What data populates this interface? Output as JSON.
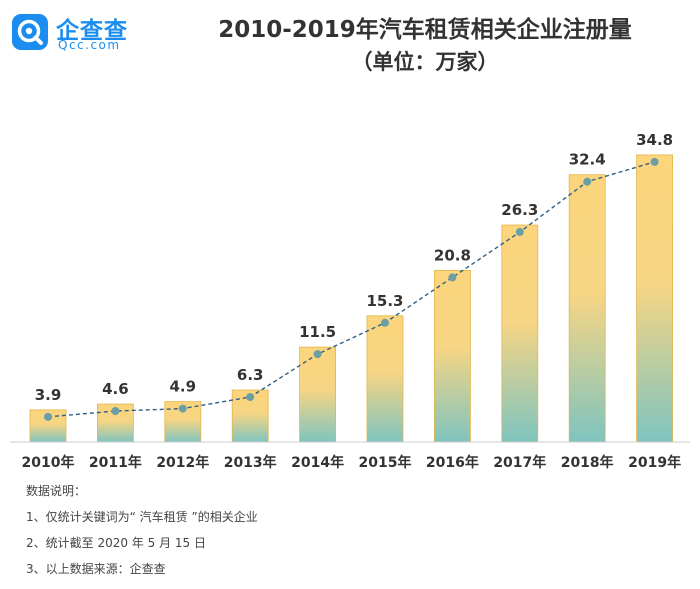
{
  "brand": {
    "name_cn": "企查查",
    "name_en": "Qcc.com",
    "accent": "#1b8df0"
  },
  "title": "2010-2019年汽车租赁相关企业注册量",
  "subtitle": "（单位：万家）",
  "chart_data": {
    "type": "bar",
    "categories": [
      "2010年",
      "2011年",
      "2012年",
      "2013年",
      "2014年",
      "2015年",
      "2016年",
      "2017年",
      "2018年",
      "2019年"
    ],
    "values": [
      3.9,
      4.6,
      4.9,
      6.3,
      11.5,
      15.3,
      20.8,
      26.3,
      32.4,
      34.8
    ],
    "data_labels": [
      "3.9",
      "4.6",
      "4.9",
      "6.3",
      "11.5",
      "15.3",
      "20.8",
      "26.3",
      "32.4",
      "34.8"
    ],
    "title": "2010-2019年汽车租赁相关企业注册量",
    "subtitle": "（单位：万家）",
    "ylim": [
      0,
      40
    ],
    "grid": false,
    "legend": "none",
    "trend_line": true,
    "colors": {
      "bar_top": "#fcd57c",
      "bar_bottom": "#7fc4bf",
      "bar_border": "#e3b64c",
      "trend": "#2f5f86",
      "marker": "#6b9fa6"
    }
  },
  "notes": {
    "heading": "数据说明：",
    "items": [
      "1、仅统计关键词为“ 汽车租赁 ”的相关企业",
      "2、统计截至 2020 年 5 月 15 日",
      "3、以上数据来源：企查查"
    ]
  }
}
